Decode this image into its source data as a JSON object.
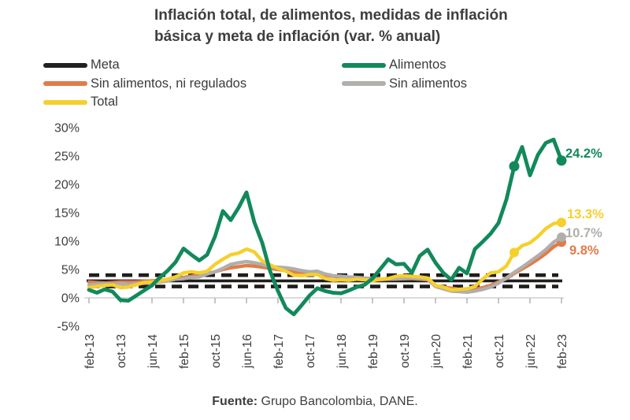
{
  "title": {
    "line1": "Inflación total, de alimentos, medidas de inflación",
    "line2": "básica y meta de inflación (var. % anual)"
  },
  "legend": [
    {
      "label": "Meta",
      "color": "#232120"
    },
    {
      "label": "Alimentos",
      "color": "#12895a"
    },
    {
      "label": "Sin alimentos, ni regulados",
      "color": "#e07c4b"
    },
    {
      "label": "Sin alimentos",
      "color": "#b1aeab"
    },
    {
      "label": "Total",
      "color": "#f5d02c"
    }
  ],
  "source": {
    "prefix": "Fuente:",
    "text": " Grupo Bancolombia, DANE."
  },
  "colors": {
    "axis": "#cfcfcf",
    "tick": "#b3b3b3",
    "text": "#3e3e3e",
    "meta": "#201e1d"
  },
  "chart_data": {
    "type": "line",
    "title": "Inflación total, de alimentos, medidas de inflación básica y meta de inflación (var. % anual)",
    "xlabel": "",
    "ylabel": "var. % anual",
    "ylim": [
      -5,
      30
    ],
    "grid": false,
    "legend_position": "top",
    "sample_interval_months": 2,
    "x_tick_labels": [
      "feb-13",
      "oct-13",
      "jun-14",
      "feb-15",
      "oct-15",
      "jun-16",
      "feb-17",
      "oct-17",
      "jun-18",
      "feb-19",
      "oct-19",
      "jun-20",
      "feb-21",
      "oct-21",
      "jun-22",
      "feb-23"
    ],
    "y_ticks": [
      {
        "label": "30%",
        "value": 30
      },
      {
        "label": "25%",
        "value": 25
      },
      {
        "label": "20%",
        "value": 20
      },
      {
        "label": "15%",
        "value": 15
      },
      {
        "label": "10%",
        "value": 10
      },
      {
        "label": "5%",
        "value": 5
      },
      {
        "label": "0%",
        "value": 0
      },
      {
        "label": "-5%",
        "value": -5
      }
    ],
    "x": [
      "feb-13",
      "abr-13",
      "jun-13",
      "ago-13",
      "oct-13",
      "dic-13",
      "feb-14",
      "abr-14",
      "jun-14",
      "ago-14",
      "oct-14",
      "dic-14",
      "feb-15",
      "abr-15",
      "jun-15",
      "ago-15",
      "oct-15",
      "dic-15",
      "feb-16",
      "abr-16",
      "jun-16",
      "ago-16",
      "oct-16",
      "dic-16",
      "feb-17",
      "abr-17",
      "jun-17",
      "ago-17",
      "oct-17",
      "dic-17",
      "feb-18",
      "abr-18",
      "jun-18",
      "ago-18",
      "oct-18",
      "dic-18",
      "feb-19",
      "abr-19",
      "jun-19",
      "ago-19",
      "oct-19",
      "dic-19",
      "feb-20",
      "abr-20",
      "jun-20",
      "ago-20",
      "oct-20",
      "dic-20",
      "feb-21",
      "abr-21",
      "jun-21",
      "ago-21",
      "oct-21",
      "dic-21",
      "feb-22",
      "abr-22",
      "jun-22",
      "ago-22",
      "oct-22",
      "dic-22",
      "feb-23"
    ],
    "series": [
      {
        "name": "Alimentos",
        "color": "#12895a",
        "end_label": "24.2%",
        "marker_indices": [
          54,
          60
        ],
        "values": [
          1.4,
          0.9,
          1.5,
          1.1,
          -0.4,
          -0.5,
          0.4,
          1.3,
          2.2,
          3.6,
          4.8,
          6.3,
          8.7,
          7.6,
          6.6,
          7.6,
          10.8,
          15.3,
          13.7,
          15.9,
          18.6,
          13.3,
          9.7,
          4.7,
          1.2,
          -1.8,
          -2.9,
          -1.3,
          0.4,
          1.7,
          1.2,
          0.9,
          0.8,
          1.3,
          1.9,
          2.3,
          3.4,
          5.1,
          6.8,
          5.9,
          6.0,
          4.4,
          7.4,
          8.5,
          6.2,
          4.4,
          3.2,
          5.3,
          4.3,
          8.6,
          9.9,
          11.3,
          13.2,
          17.3,
          23.2,
          26.6,
          21.6,
          25.2,
          27.3,
          27.9,
          24.2
        ]
      },
      {
        "name": "Total",
        "color": "#f5d02c",
        "end_label": "13.3%",
        "marker_indices": [
          54,
          60
        ],
        "values": [
          1.8,
          2.0,
          2.2,
          2.3,
          1.8,
          1.9,
          2.3,
          2.7,
          2.8,
          3.0,
          3.3,
          3.7,
          4.4,
          4.6,
          4.4,
          4.7,
          5.9,
          6.8,
          7.6,
          7.9,
          8.6,
          8.1,
          6.5,
          5.8,
          5.2,
          4.7,
          4.0,
          3.9,
          4.1,
          4.1,
          3.4,
          3.1,
          3.2,
          3.1,
          3.3,
          3.2,
          3.0,
          3.3,
          3.4,
          3.8,
          3.9,
          3.8,
          3.7,
          3.5,
          2.2,
          1.9,
          1.4,
          1.5,
          1.6,
          2.0,
          3.3,
          4.4,
          4.6,
          5.6,
          8.0,
          9.2,
          9.7,
          10.8,
          12.2,
          13.1,
          13.3
        ]
      },
      {
        "name": "Sin alimentos",
        "color": "#b1aeab",
        "end_label": "10.7%",
        "marker_indices": [
          60
        ],
        "values": [
          2.3,
          2.4,
          2.5,
          2.4,
          2.5,
          2.4,
          2.5,
          2.6,
          2.7,
          2.8,
          3.0,
          3.3,
          3.4,
          3.6,
          3.7,
          4.2,
          4.6,
          5.2,
          5.9,
          6.2,
          6.4,
          6.2,
          5.9,
          5.5,
          5.4,
          5.3,
          5.1,
          4.8,
          4.6,
          4.7,
          4.2,
          3.9,
          3.8,
          3.7,
          3.6,
          3.5,
          3.4,
          3.3,
          3.3,
          3.4,
          3.4,
          3.5,
          3.4,
          3.3,
          2.0,
          1.6,
          1.2,
          1.1,
          1.0,
          1.2,
          1.5,
          1.9,
          2.6,
          3.5,
          4.5,
          5.4,
          6.4,
          7.4,
          8.5,
          9.8,
          10.7
        ]
      },
      {
        "name": "Sin alimentos, ni regulados",
        "color": "#e07c4b",
        "end_label": "9.8%",
        "marker_indices": [
          60
        ],
        "values": [
          2.8,
          2.7,
          2.6,
          2.7,
          2.8,
          2.8,
          2.8,
          2.9,
          3.0,
          3.1,
          3.2,
          3.4,
          3.6,
          3.8,
          4.0,
          4.3,
          4.6,
          5.0,
          5.3,
          5.5,
          5.7,
          5.6,
          5.4,
          5.2,
          5.0,
          4.8,
          4.6,
          4.5,
          4.4,
          4.3,
          4.0,
          3.8,
          3.6,
          3.5,
          3.4,
          3.3,
          3.2,
          3.2,
          3.3,
          3.3,
          3.4,
          3.4,
          3.3,
          3.2,
          2.1,
          1.9,
          1.7,
          1.5,
          1.3,
          1.5,
          1.8,
          2.2,
          2.8,
          3.4,
          4.3,
          5.1,
          5.9,
          6.8,
          7.8,
          9.0,
          9.8
        ]
      }
    ],
    "meta": {
      "name": "Meta",
      "target": 3,
      "upper_band": 4,
      "lower_band": 2,
      "style": "target solid, bands dashed",
      "color": "#201e1d"
    }
  }
}
